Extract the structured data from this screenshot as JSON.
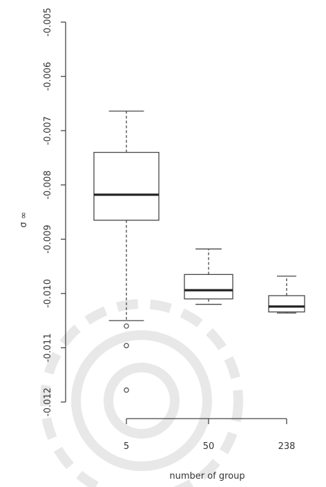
{
  "chart_data": {
    "type": "box",
    "title": "",
    "xlabel": "number of group",
    "ylabel": "σ ∞",
    "ylim": [
      -0.012,
      -0.005
    ],
    "y_ticks": [
      -0.012,
      -0.011,
      -0.01,
      -0.009,
      -0.008,
      -0.007,
      -0.006,
      -0.005
    ],
    "y_tick_labels": [
      "-0.012",
      "-0.011",
      "-0.010",
      "-0.009",
      "-0.008",
      "-0.007",
      "-0.006",
      "-0.005"
    ],
    "categories": [
      "5",
      "50",
      "238"
    ],
    "boxes": [
      {
        "category": "5",
        "whisker_low": -0.0105,
        "q1": -0.00865,
        "median": -0.00818,
        "q3": -0.0074,
        "whisker_high": -0.00664,
        "outliers": [
          -0.0106,
          -0.01096,
          -0.01178
        ]
      },
      {
        "category": "50",
        "whisker_low": -0.0102,
        "q1": -0.0101,
        "median": -0.00994,
        "q3": -0.00965,
        "whisker_high": -0.00918,
        "outliers": []
      },
      {
        "category": "238",
        "whisker_low": -0.01036,
        "q1": -0.01034,
        "median": -0.01024,
        "q3": -0.01004,
        "whisker_high": -0.00968,
        "outliers": []
      }
    ],
    "grid": false,
    "legend": "none",
    "watermark": "ornamental-rosette"
  }
}
